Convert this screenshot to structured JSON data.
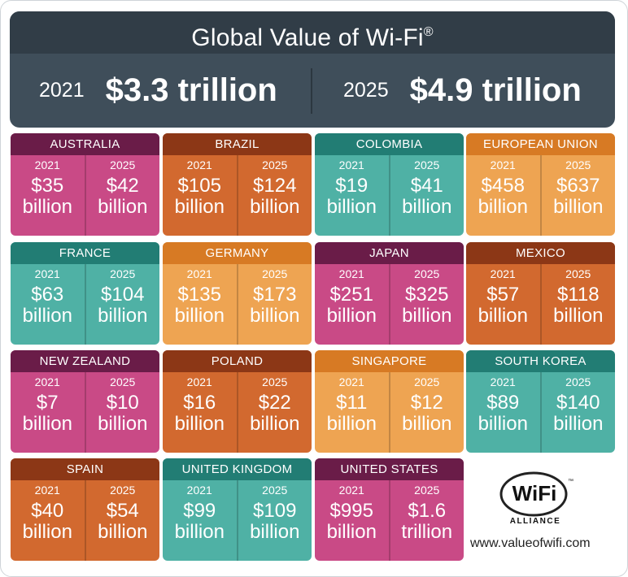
{
  "header": {
    "title": "Global Value of Wi-Fi",
    "title_mark": "®",
    "left_year": "2021",
    "left_value": "$3.3 trillion",
    "right_year": "2025",
    "right_value": "$4.9 trillion"
  },
  "countries": [
    {
      "name": "AUSTRALIA",
      "y1": "2021",
      "v1": "$35",
      "u1": "billion",
      "y2": "2025",
      "v2": "$42",
      "u2": "billion",
      "color": "#c94a86"
    },
    {
      "name": "BRAZIL",
      "y1": "2021",
      "v1": "$105",
      "u1": "billion",
      "y2": "2025",
      "v2": "$124",
      "u2": "billion",
      "color": "#d2692f"
    },
    {
      "name": "COLOMBIA",
      "y1": "2021",
      "v1": "$19",
      "u1": "billion",
      "y2": "2025",
      "v2": "$41",
      "u2": "billion",
      "color": "#4fb1a5"
    },
    {
      "name": "EUROPEAN UNION",
      "y1": "2021",
      "v1": "$458",
      "u1": "billion",
      "y2": "2025",
      "v2": "$637",
      "u2": "billion",
      "color": "#eea452"
    },
    {
      "name": "FRANCE",
      "y1": "2021",
      "v1": "$63",
      "u1": "billion",
      "y2": "2025",
      "v2": "$104",
      "u2": "billion",
      "color": "#4fb1a5"
    },
    {
      "name": "GERMANY",
      "y1": "2021",
      "v1": "$135",
      "u1": "billion",
      "y2": "2025",
      "v2": "$173",
      "u2": "billion",
      "color": "#eea452"
    },
    {
      "name": "JAPAN",
      "y1": "2021",
      "v1": "$251",
      "u1": "billion",
      "y2": "2025",
      "v2": "$325",
      "u2": "billion",
      "color": "#c94a86"
    },
    {
      "name": "MEXICO",
      "y1": "2021",
      "v1": "$57",
      "u1": "billion",
      "y2": "2025",
      "v2": "$118",
      "u2": "billion",
      "color": "#d2692f"
    },
    {
      "name": "NEW ZEALAND",
      "y1": "2021",
      "v1": "$7",
      "u1": "billion",
      "y2": "2025",
      "v2": "$10",
      "u2": "billion",
      "color": "#c94a86"
    },
    {
      "name": "POLAND",
      "y1": "2021",
      "v1": "$16",
      "u1": "billion",
      "y2": "2025",
      "v2": "$22",
      "u2": "billion",
      "color": "#d2692f"
    },
    {
      "name": "SINGAPORE",
      "y1": "2021",
      "v1": "$11",
      "u1": "billion",
      "y2": "2025",
      "v2": "$12",
      "u2": "billion",
      "color": "#eea452"
    },
    {
      "name": "SOUTH KOREA",
      "y1": "2021",
      "v1": "$89",
      "u1": "billion",
      "y2": "2025",
      "v2": "$140",
      "u2": "billion",
      "color": "#4fb1a5"
    },
    {
      "name": "SPAIN",
      "y1": "2021",
      "v1": "$40",
      "u1": "billion",
      "y2": "2025",
      "v2": "$54",
      "u2": "billion",
      "color": "#d2692f"
    },
    {
      "name": "UNITED KINGDOM",
      "y1": "2021",
      "v1": "$99",
      "u1": "billion",
      "y2": "2025",
      "v2": "$109",
      "u2": "billion",
      "color": "#4fb1a5"
    },
    {
      "name": "UNITED STATES",
      "y1": "2021",
      "v1": "$995",
      "u1": "billion",
      "y2": "2025",
      "v2": "$1.6",
      "u2": "trillion",
      "color": "#c94a86"
    }
  ],
  "logo": {
    "wordmark": "WiFi",
    "tagline": "ALLIANCE",
    "tm": "™",
    "icon": "wifi-alliance-logo"
  },
  "footer": {
    "website": "www.valueofwifi.com"
  }
}
